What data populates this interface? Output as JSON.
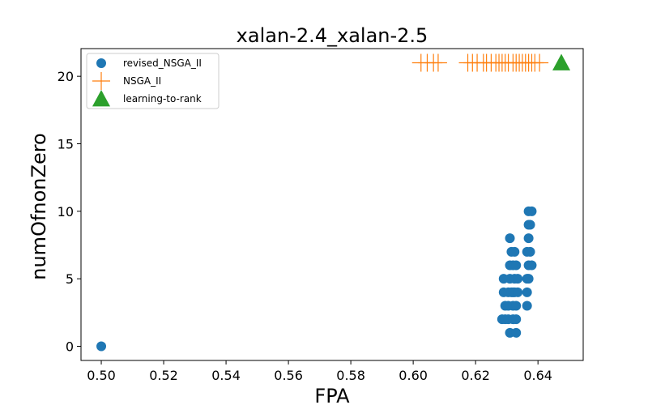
{
  "chart_data": {
    "type": "scatter",
    "title": "xalan-2.4_xalan-2.5",
    "xlabel": "FPA",
    "ylabel": "numOfnonZero",
    "xlim": [
      0.4935,
      0.6545
    ],
    "ylim": [
      -1.05,
      22.05
    ],
    "xticks": [
      "0.50",
      "0.52",
      "0.54",
      "0.56",
      "0.58",
      "0.60",
      "0.62",
      "0.64"
    ],
    "yticks": [
      "0",
      "5",
      "10",
      "15",
      "20"
    ],
    "grid": false,
    "legend_position": "upper-left",
    "series": [
      {
        "name": "revised_NSGA_II",
        "marker": "circle",
        "color": "#1f77b4",
        "points": [
          [
            0.5,
            0
          ],
          [
            0.6285,
            2
          ],
          [
            0.6295,
            2
          ],
          [
            0.6305,
            2
          ],
          [
            0.632,
            2
          ],
          [
            0.633,
            2
          ],
          [
            0.631,
            1
          ],
          [
            0.633,
            1
          ],
          [
            0.6295,
            3
          ],
          [
            0.6305,
            3
          ],
          [
            0.632,
            3
          ],
          [
            0.633,
            3
          ],
          [
            0.6365,
            3
          ],
          [
            0.629,
            4
          ],
          [
            0.6305,
            4
          ],
          [
            0.6315,
            4
          ],
          [
            0.632,
            4
          ],
          [
            0.6325,
            4
          ],
          [
            0.6335,
            4
          ],
          [
            0.6365,
            4
          ],
          [
            0.629,
            5
          ],
          [
            0.631,
            5
          ],
          [
            0.6325,
            5
          ],
          [
            0.6335,
            5
          ],
          [
            0.6365,
            5
          ],
          [
            0.637,
            5
          ],
          [
            0.631,
            6
          ],
          [
            0.632,
            6
          ],
          [
            0.633,
            6
          ],
          [
            0.637,
            6
          ],
          [
            0.638,
            6
          ],
          [
            0.6315,
            7
          ],
          [
            0.6325,
            7
          ],
          [
            0.6365,
            7
          ],
          [
            0.6375,
            7
          ],
          [
            0.631,
            8
          ],
          [
            0.637,
            8
          ],
          [
            0.637,
            9
          ],
          [
            0.6375,
            9
          ],
          [
            0.637,
            10
          ],
          [
            0.638,
            10
          ]
        ]
      },
      {
        "name": "NSGA_II",
        "marker": "plus",
        "color": "#ff7f0e",
        "points": [
          [
            0.6025,
            21
          ],
          [
            0.6045,
            21
          ],
          [
            0.6065,
            21
          ],
          [
            0.608,
            21
          ],
          [
            0.6175,
            21
          ],
          [
            0.619,
            21
          ],
          [
            0.6205,
            21
          ],
          [
            0.6225,
            21
          ],
          [
            0.6235,
            21
          ],
          [
            0.625,
            21
          ],
          [
            0.6265,
            21
          ],
          [
            0.6275,
            21
          ],
          [
            0.6285,
            21
          ],
          [
            0.6295,
            21
          ],
          [
            0.6305,
            21
          ],
          [
            0.632,
            21
          ],
          [
            0.633,
            21
          ],
          [
            0.634,
            21
          ],
          [
            0.635,
            21
          ],
          [
            0.636,
            21
          ],
          [
            0.637,
            21
          ],
          [
            0.638,
            21
          ],
          [
            0.639,
            21
          ],
          [
            0.6405,
            21
          ]
        ]
      },
      {
        "name": "learning-to-rank",
        "marker": "triangle",
        "color": "#2ca02c",
        "points": [
          [
            0.6475,
            21
          ]
        ]
      }
    ]
  }
}
